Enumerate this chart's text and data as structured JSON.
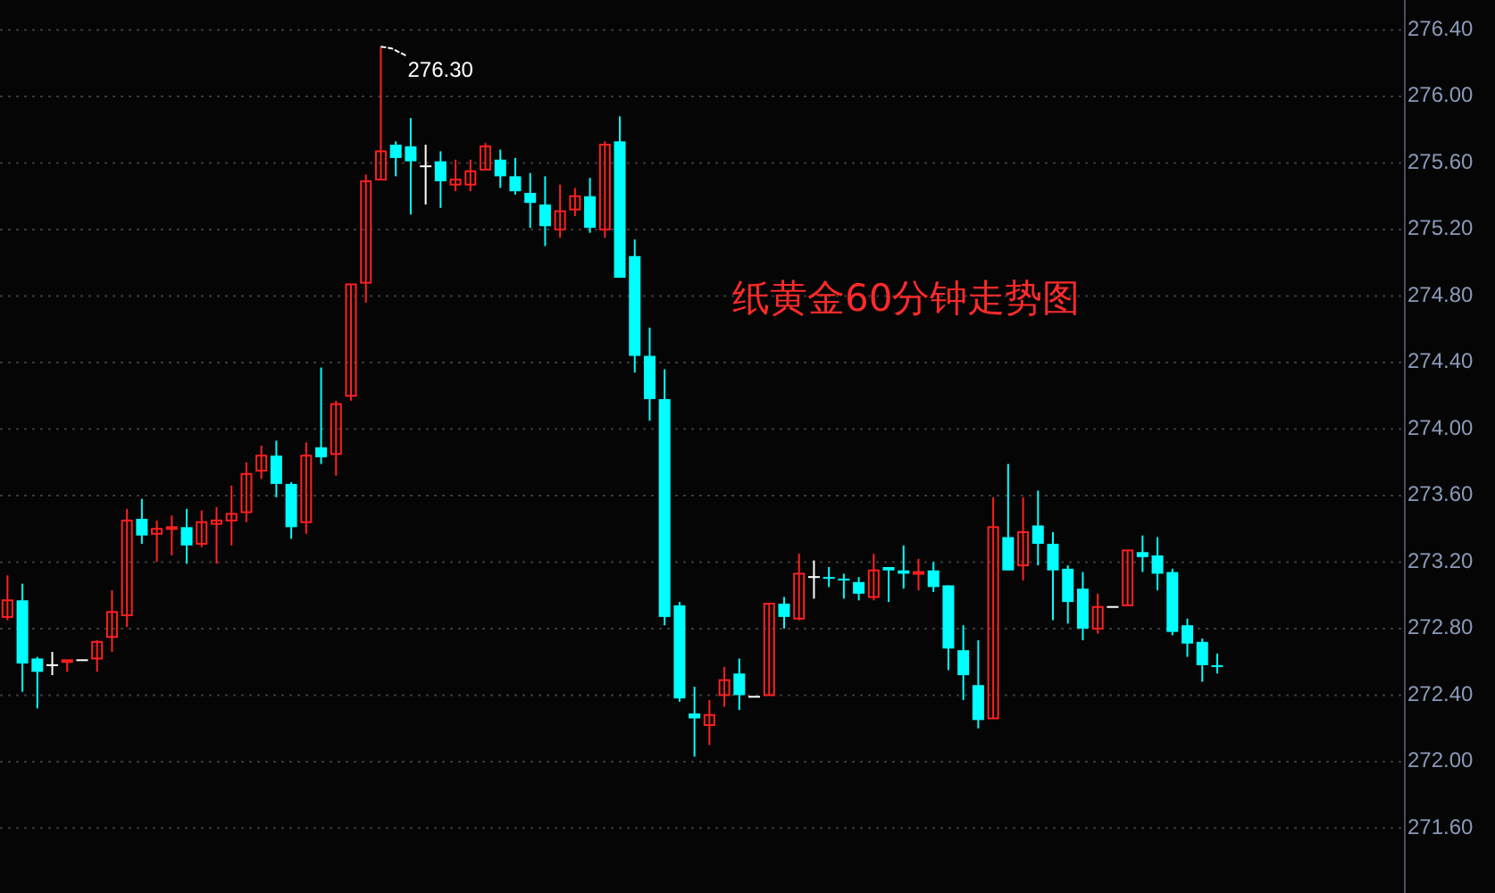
{
  "chart_data": {
    "type": "candlestick",
    "title": "纸黄金60分钟走势图",
    "categories": [
      null,
      null,
      null,
      null,
      null,
      null,
      null,
      null,
      null,
      null,
      null,
      null,
      null,
      null,
      null,
      null,
      null,
      null,
      null,
      null,
      null,
      null,
      null,
      null,
      null,
      null,
      null,
      null,
      null,
      null,
      null,
      null,
      null,
      null,
      null,
      null,
      null,
      null,
      null,
      null,
      null,
      null,
      null,
      null,
      null,
      null,
      null,
      null,
      null,
      null,
      null,
      null,
      null,
      null,
      null,
      null,
      null,
      null,
      null,
      null,
      null,
      null,
      null,
      null,
      null,
      null,
      null,
      null,
      null,
      null,
      null,
      null,
      null,
      null,
      null,
      null,
      null,
      null,
      null,
      null,
      null,
      null,
      null,
      null,
      null,
      null,
      null,
      null,
      null,
      null,
      null,
      null,
      null,
      null
    ],
    "ohlc": [
      [
        272.87,
        273.12,
        272.85,
        272.97
      ],
      [
        272.97,
        273.07,
        272.42,
        272.59
      ],
      [
        272.62,
        272.63,
        272.32,
        272.54
      ],
      [
        272.58,
        272.66,
        272.52,
        272.58
      ],
      [
        272.6,
        272.61,
        272.54,
        272.61
      ],
      [
        272.61,
        272.61,
        272.61,
        272.61
      ],
      [
        272.62,
        272.73,
        272.54,
        272.72
      ],
      [
        272.75,
        273.03,
        272.66,
        272.9
      ],
      [
        272.88,
        273.52,
        272.81,
        273.45
      ],
      [
        273.46,
        273.58,
        273.31,
        273.36
      ],
      [
        273.37,
        273.45,
        273.2,
        273.4
      ],
      [
        273.4,
        273.48,
        273.24,
        273.41
      ],
      [
        273.41,
        273.52,
        273.19,
        273.3
      ],
      [
        273.31,
        273.51,
        273.29,
        273.44
      ],
      [
        273.43,
        273.53,
        273.19,
        273.45
      ],
      [
        273.45,
        273.66,
        273.3,
        273.49
      ],
      [
        273.5,
        273.8,
        273.44,
        273.73
      ],
      [
        273.75,
        273.9,
        273.7,
        273.84
      ],
      [
        273.84,
        273.93,
        273.59,
        273.67
      ],
      [
        273.67,
        273.68,
        273.34,
        273.41
      ],
      [
        273.44,
        273.92,
        273.37,
        273.84
      ],
      [
        273.89,
        274.37,
        273.79,
        273.83
      ],
      [
        273.85,
        274.17,
        273.72,
        274.15
      ],
      [
        274.2,
        274.87,
        274.17,
        274.87
      ],
      [
        274.88,
        275.53,
        274.76,
        275.49
      ],
      [
        275.5,
        276.3,
        275.5,
        275.67
      ],
      [
        275.71,
        275.73,
        275.52,
        275.63
      ],
      [
        275.7,
        275.87,
        275.29,
        275.61
      ],
      [
        275.58,
        275.71,
        275.35,
        275.58
      ],
      [
        275.61,
        275.67,
        275.33,
        275.49
      ],
      [
        275.47,
        275.62,
        275.43,
        275.5
      ],
      [
        275.47,
        275.62,
        275.43,
        275.55
      ],
      [
        275.56,
        275.72,
        275.56,
        275.7
      ],
      [
        275.62,
        275.68,
        275.45,
        275.52
      ],
      [
        275.52,
        275.63,
        275.41,
        275.43
      ],
      [
        275.42,
        275.54,
        275.21,
        275.36
      ],
      [
        275.35,
        275.52,
        275.1,
        275.22
      ],
      [
        275.2,
        275.47,
        275.15,
        275.31
      ],
      [
        275.32,
        275.45,
        275.28,
        275.4
      ],
      [
        275.4,
        275.51,
        275.18,
        275.21
      ],
      [
        275.2,
        275.73,
        275.15,
        275.71
      ],
      [
        275.73,
        275.88,
        274.91,
        274.91
      ],
      [
        275.04,
        275.14,
        274.34,
        274.44
      ],
      [
        274.44,
        274.61,
        274.05,
        274.18
      ],
      [
        274.18,
        274.36,
        272.82,
        272.87
      ],
      [
        272.94,
        272.96,
        272.36,
        272.38
      ],
      [
        272.29,
        272.45,
        272.03,
        272.26
      ],
      [
        272.22,
        272.37,
        272.1,
        272.28
      ],
      [
        272.4,
        272.57,
        272.33,
        272.49
      ],
      [
        272.53,
        272.62,
        272.31,
        272.4
      ],
      [
        272.39,
        272.39,
        272.39,
        272.39
      ],
      [
        272.4,
        272.95,
        272.4,
        272.95
      ],
      [
        272.95,
        272.99,
        272.8,
        272.87
      ],
      [
        272.86,
        273.25,
        272.85,
        273.13
      ],
      [
        273.11,
        273.21,
        272.98,
        273.11
      ],
      [
        273.11,
        273.17,
        273.05,
        273.1
      ],
      [
        273.1,
        273.13,
        272.98,
        273.09
      ],
      [
        273.08,
        273.11,
        272.97,
        273.01
      ],
      [
        272.99,
        273.25,
        272.97,
        273.15
      ],
      [
        273.17,
        273.17,
        272.96,
        273.15
      ],
      [
        273.15,
        273.3,
        273.04,
        273.13
      ],
      [
        273.13,
        273.22,
        273.03,
        273.14
      ],
      [
        273.15,
        273.2,
        273.02,
        273.05
      ],
      [
        273.06,
        273.06,
        272.55,
        272.68
      ],
      [
        272.67,
        272.82,
        272.37,
        272.52
      ],
      [
        272.46,
        272.73,
        272.2,
        272.25
      ],
      [
        272.26,
        273.59,
        272.26,
        273.41
      ],
      [
        273.35,
        273.79,
        273.15,
        273.15
      ],
      [
        273.18,
        273.59,
        273.09,
        273.38
      ],
      [
        273.42,
        273.63,
        273.18,
        273.31
      ],
      [
        273.31,
        273.38,
        272.85,
        273.15
      ],
      [
        273.16,
        273.18,
        272.83,
        272.96
      ],
      [
        273.04,
        273.14,
        272.73,
        272.8
      ],
      [
        272.8,
        273.01,
        272.77,
        272.93
      ],
      [
        272.93,
        272.93,
        272.93,
        272.93
      ],
      [
        272.94,
        273.27,
        272.94,
        273.27
      ],
      [
        273.26,
        273.36,
        273.14,
        273.23
      ],
      [
        273.24,
        273.35,
        273.03,
        273.13
      ],
      [
        273.14,
        273.16,
        272.76,
        272.78
      ],
      [
        272.82,
        272.86,
        272.63,
        272.71
      ],
      [
        272.72,
        272.74,
        272.48,
        272.58
      ],
      [
        272.58,
        272.65,
        272.53,
        272.57
      ],
      null,
      null,
      null,
      null,
      null,
      null,
      null,
      null,
      null,
      null,
      null,
      null
    ],
    "colors": [
      "#ff2020",
      "#00ffff",
      "#00ffff",
      "#ffffff",
      "#ff2020",
      "#ffffff",
      "#ff2020",
      "#ff2020",
      "#ff2020",
      "#00ffff",
      "#ff2020",
      "#ff2020",
      "#00ffff",
      "#ff2020",
      "#ff2020",
      "#ff2020",
      "#ff2020",
      "#ff2020",
      "#00ffff",
      "#00ffff",
      "#ff2020",
      "#00ffff",
      "#ff2020",
      "#ff2020",
      "#ff2020",
      "#ff2020",
      "#00ffff",
      "#00ffff",
      "#ffffff",
      "#00ffff",
      "#ff2020",
      "#ff2020",
      "#ff2020",
      "#00ffff",
      "#00ffff",
      "#00ffff",
      "#00ffff",
      "#ff2020",
      "#ff2020",
      "#00ffff",
      "#ff2020",
      "#00ffff",
      "#00ffff",
      "#00ffff",
      "#00ffff",
      "#00ffff",
      "#00ffff",
      "#ff2020",
      "#ff2020",
      "#00ffff",
      "#ffffff",
      "#ff2020",
      "#00ffff",
      "#ff2020",
      "#ffffff",
      "#00ffff",
      "#00ffff",
      "#00ffff",
      "#ff2020",
      "#00ffff",
      "#00ffff",
      "#ff2020",
      "#00ffff",
      "#00ffff",
      "#00ffff",
      "#00ffff",
      "#ff2020",
      "#00ffff",
      "#ff2020",
      "#00ffff",
      "#00ffff",
      "#00ffff",
      "#00ffff",
      "#ff2020",
      "#ffffff",
      "#ff2020",
      "#00ffff",
      "#00ffff",
      "#00ffff",
      "#00ffff",
      "#00ffff",
      "#00ffff",
      null,
      null,
      null,
      null,
      null,
      null,
      null,
      null,
      null,
      null,
      null,
      null
    ],
    "ylim": [
      271.21,
      276.58
    ],
    "yticks": [
      {
        "value": 271.6,
        "label": "271.60"
      },
      {
        "value": 272.0,
        "label": "272.00"
      },
      {
        "value": 272.4,
        "label": "272.40"
      },
      {
        "value": 272.8,
        "label": "272.80"
      },
      {
        "value": 273.2,
        "label": "273.20"
      },
      {
        "value": 273.6,
        "label": "273.60"
      },
      {
        "value": 274.0,
        "label": "274.00"
      },
      {
        "value": 274.4,
        "label": "274.40"
      },
      {
        "value": 274.8,
        "label": "274.80"
      },
      {
        "value": 275.2,
        "label": "275.20"
      },
      {
        "value": 275.6,
        "label": "275.60"
      },
      {
        "value": 276.0,
        "label": "276.00"
      },
      {
        "value": 276.4,
        "label": "276.40"
      }
    ],
    "grid": "y",
    "annotations": [
      "276.30"
    ]
  }
}
